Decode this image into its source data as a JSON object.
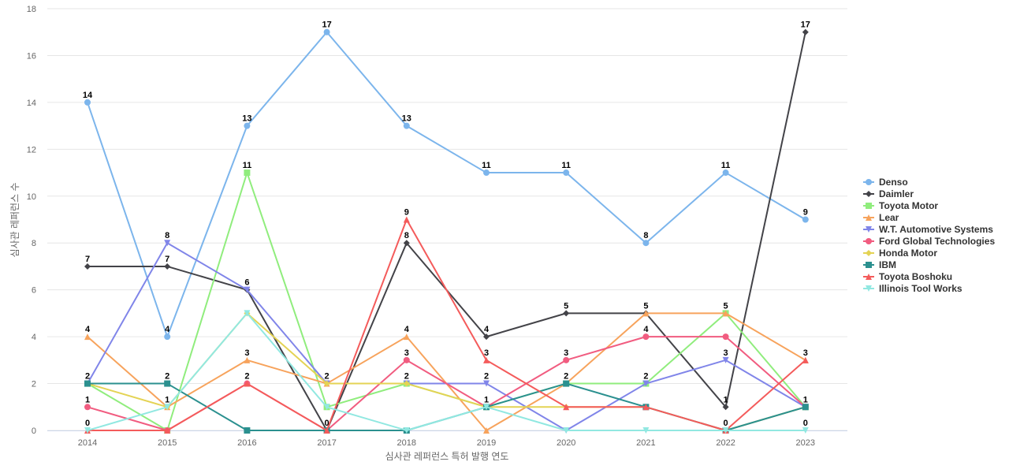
{
  "chart_data": {
    "type": "line",
    "title": "",
    "xlabel": "심사관 레퍼런스 특허 발행 연도",
    "ylabel": "심사관 레퍼런스 수",
    "x": [
      "2014",
      "2015",
      "2016",
      "2017",
      "2018",
      "2019",
      "2020",
      "2021",
      "2022",
      "2023"
    ],
    "ylim": [
      0,
      18
    ],
    "yticks": [
      0,
      2,
      4,
      6,
      8,
      10,
      12,
      14,
      16,
      18
    ],
    "grid": true,
    "legend_position": "right",
    "series": [
      {
        "name": "Denso",
        "color": "#7cb5ec",
        "marker": "circle",
        "values": [
          14,
          4,
          13,
          17,
          13,
          11,
          11,
          8,
          11,
          9
        ]
      },
      {
        "name": "Daimler",
        "color": "#434348",
        "marker": "diamond",
        "values": [
          7,
          7,
          6,
          0,
          8,
          4,
          5,
          5,
          1,
          17
        ]
      },
      {
        "name": "Toyota Motor",
        "color": "#90ed7d",
        "marker": "square",
        "values": [
          2,
          0,
          11,
          1,
          2,
          1,
          2,
          2,
          5,
          1
        ]
      },
      {
        "name": "Lear",
        "color": "#f7a35c",
        "marker": "triangle",
        "values": [
          4,
          1,
          3,
          2,
          4,
          0,
          2,
          5,
          5,
          3
        ]
      },
      {
        "name": "W.T. Automotive Systems",
        "color": "#8085e9",
        "marker": "triangle-down",
        "values": [
          2,
          8,
          6,
          2,
          2,
          2,
          0,
          2,
          3,
          1
        ]
      },
      {
        "name": "Ford Global Technologies",
        "color": "#f15c80",
        "marker": "circle",
        "values": [
          1,
          0,
          2,
          0,
          3,
          1,
          3,
          4,
          4,
          1
        ]
      },
      {
        "name": "Honda Motor",
        "color": "#e4d354",
        "marker": "diamond",
        "values": [
          2,
          1,
          5,
          2,
          2,
          1,
          1,
          1,
          0,
          1
        ]
      },
      {
        "name": "IBM",
        "color": "#2b908f",
        "marker": "square",
        "values": [
          2,
          2,
          0,
          0,
          0,
          1,
          2,
          1,
          0,
          1
        ]
      },
      {
        "name": "Toyota Boshoku",
        "color": "#f45b5b",
        "marker": "triangle",
        "values": [
          0,
          0,
          2,
          0,
          9,
          3,
          1,
          1,
          0,
          3
        ]
      },
      {
        "name": "Illinois Tool Works",
        "color": "#91e8e1",
        "marker": "triangle-down",
        "values": [
          0,
          1,
          5,
          1,
          0,
          1,
          0,
          0,
          0,
          0
        ]
      }
    ],
    "data_labels": [
      {
        "series": "Denso",
        "points": [
          0,
          1,
          2,
          3,
          4,
          5,
          6,
          7,
          8,
          9
        ]
      },
      {
        "series": "Daimler",
        "points": [
          0,
          1,
          2,
          4,
          5,
          6,
          7,
          8,
          9
        ]
      },
      {
        "series": "Toyota Motor",
        "points": [
          2,
          8
        ]
      },
      {
        "series": "Lear",
        "points": [
          0,
          2,
          4
        ]
      },
      {
        "series": "W.T. Automotive Systems",
        "points": [
          0,
          1,
          3,
          4,
          5,
          7,
          8
        ]
      },
      {
        "series": "Ford Global Technologies",
        "points": [
          0,
          4,
          6,
          7
        ]
      },
      {
        "series": "Honda Motor",
        "points": [
          1,
          9
        ]
      },
      {
        "series": "IBM",
        "points": [
          1,
          5,
          6
        ]
      },
      {
        "series": "Toyota Boshoku",
        "points": [
          0,
          2,
          3,
          4,
          5,
          8,
          9
        ]
      },
      {
        "series": "Illinois Tool Works",
        "points": [
          9
        ]
      }
    ]
  }
}
